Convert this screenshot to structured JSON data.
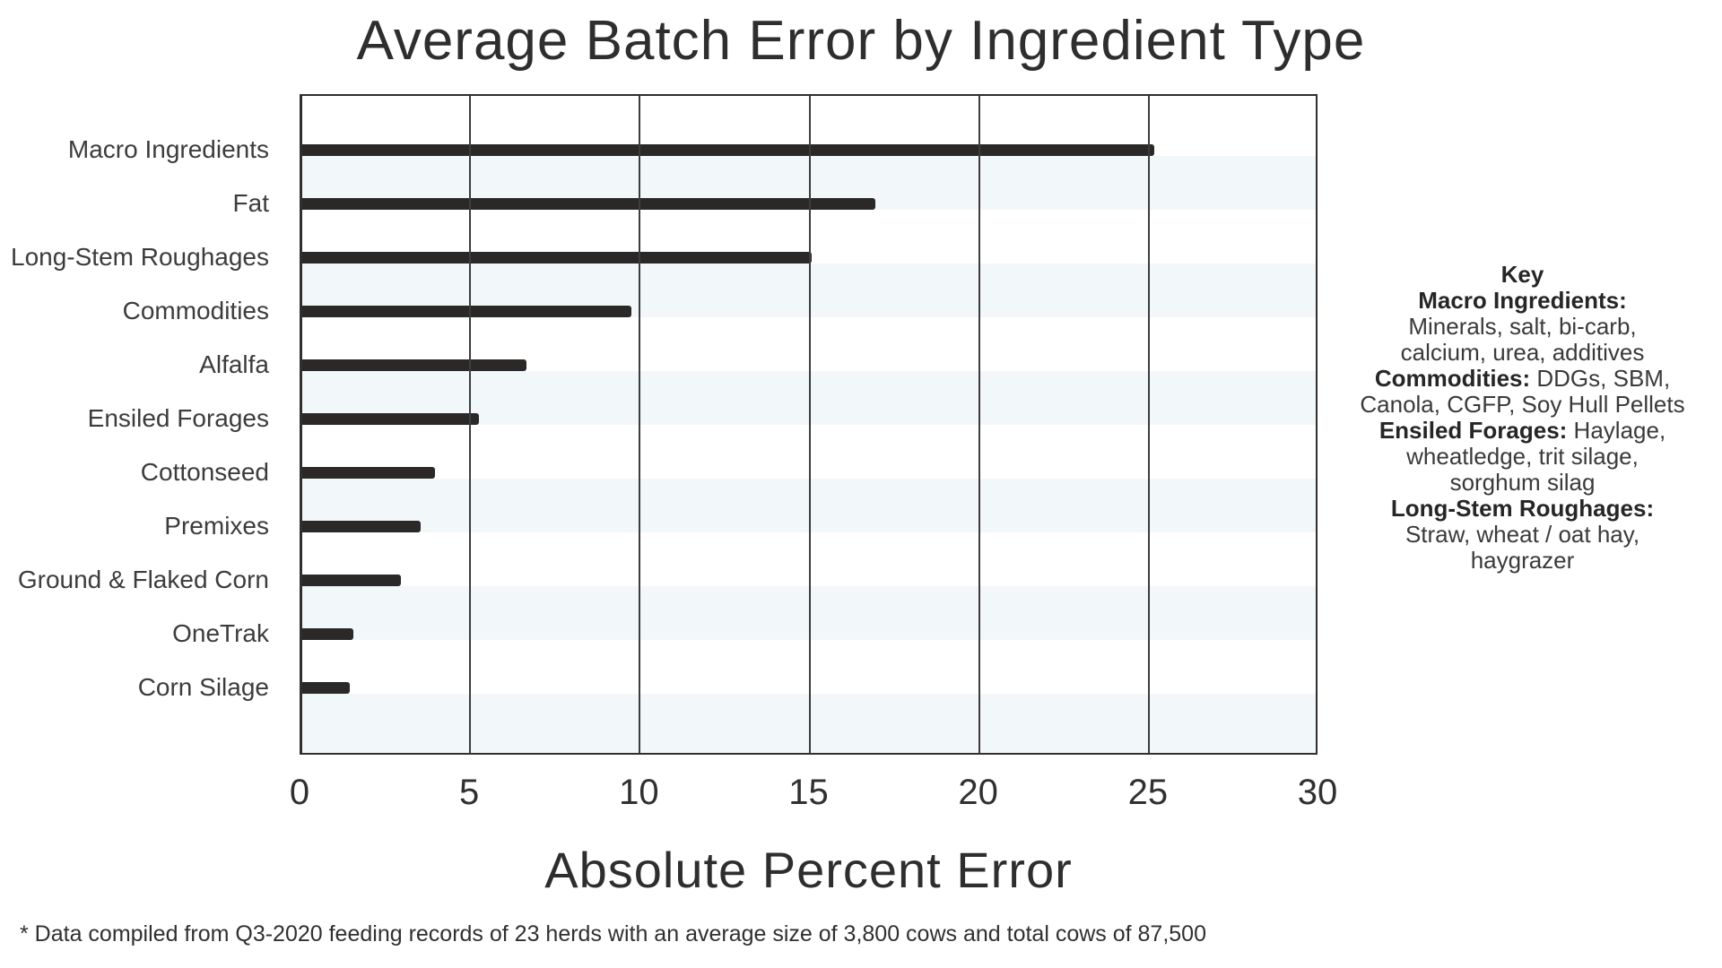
{
  "chart_data": {
    "type": "bar",
    "orientation": "horizontal",
    "title": "Average Batch Error by Ingredient Type",
    "xlabel": "Absolute Percent Error",
    "categories": [
      "Macro Ingredients",
      "Fat",
      "Long-Stem Roughages",
      "Commodities",
      "Alfalfa",
      "Ensiled Forages",
      "Cottonseed",
      "Premixes",
      "Ground & Flaked Corn",
      "OneTrak",
      "Corn Silage"
    ],
    "values": [
      25.1,
      16.9,
      15.0,
      9.7,
      6.6,
      5.2,
      3.9,
      3.5,
      2.9,
      1.5,
      1.4
    ],
    "xlim": [
      0,
      30
    ],
    "xticks": [
      "0",
      "5",
      "10",
      "15",
      "20",
      "25",
      "30"
    ],
    "grid": "vertical gridlines at every tick",
    "row_stripes": "alternating light bands behind every other bar row",
    "legend_position": "right",
    "colors": {
      "bar": "#2a2927",
      "stripe": "#f2f7fa",
      "grid": "#3d3d3d",
      "text": "#303030"
    }
  },
  "key": {
    "lines": [
      {
        "bold": "Key",
        "text": ""
      },
      {
        "bold": "Macro Ingredients:",
        "text": ""
      },
      {
        "bold": "",
        "text": "Minerals, salt, bi-carb,"
      },
      {
        "bold": "",
        "text": "calcium, urea, additives"
      },
      {
        "bold": "Commodities:",
        "text": " DDGs, SBM,"
      },
      {
        "bold": "",
        "text": "Canola, CGFP, Soy Hull Pellets"
      },
      {
        "bold": "Ensiled Forages:",
        "text": " Haylage,"
      },
      {
        "bold": "",
        "text": "wheatledge, trit silage,"
      },
      {
        "bold": "",
        "text": "sorghum silag"
      },
      {
        "bold": "Long-Stem Roughages:",
        "text": ""
      },
      {
        "bold": "",
        "text": "Straw, wheat / oat hay,"
      },
      {
        "bold": "",
        "text": "haygrazer"
      }
    ]
  },
  "footnote": "* Data compiled from Q3-2020 feeding records of 23 herds with an average size of 3,800 cows and total cows of 87,500"
}
